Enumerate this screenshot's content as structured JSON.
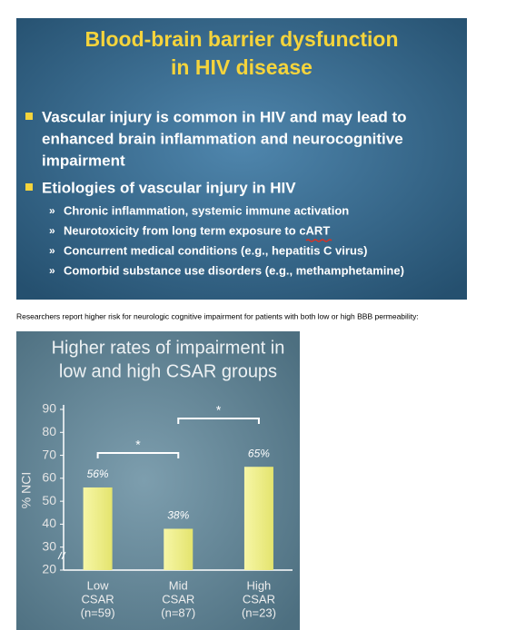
{
  "slide": {
    "title": [
      "Blood-brain barrier dysfunction",
      "in HIV disease"
    ],
    "bullets": [
      {
        "lines": [
          "Vascular injury is common in HIV and may lead to",
          "enhanced brain inflammation and neurocognitive",
          "impairment"
        ],
        "sub": []
      },
      {
        "lines": [
          "Etiologies of vascular injury in HIV"
        ],
        "sub": [
          "Chronic inflammation, systemic immune activation",
          "Neurotoxicity from long term exposure to cART",
          "Concurrent medical conditions (e.g., hepatitis C virus)",
          "Comorbid substance use disorders (e.g., methamphetamine)"
        ]
      }
    ]
  },
  "caption": "Researchers report higher risk for neurologic cognitive impairment for patients with both low or high BBB permeability:",
  "chart_data": {
    "type": "bar",
    "title": [
      "Higher rates of impairment in",
      "low and high CSAR groups"
    ],
    "y_label": "% NCI",
    "categories": [
      [
        "Low",
        "CSAR",
        "(n=59)"
      ],
      [
        "Mid",
        "CSAR",
        "(n=87)"
      ],
      [
        "High",
        "CSAR",
        "(n=23)"
      ]
    ],
    "values": [
      56,
      38,
      65
    ],
    "value_labels": [
      "56%",
      "38%",
      "65%"
    ],
    "color": "#f2f28c",
    "ylim": [
      20,
      90
    ],
    "yticks": [
      20,
      30,
      40,
      50,
      60,
      70,
      80,
      90
    ],
    "annotations": [
      "*",
      "*"
    ]
  }
}
